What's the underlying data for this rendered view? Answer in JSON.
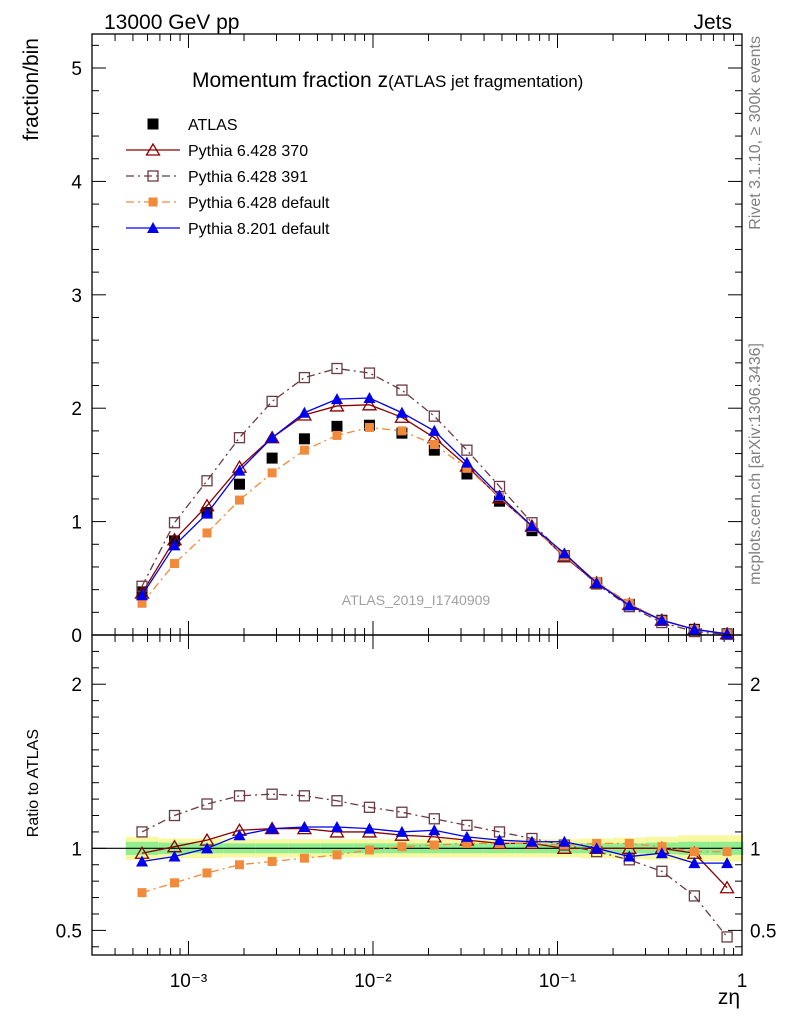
{
  "header": {
    "left": "13000 GeV pp",
    "right": "Jets"
  },
  "side_text": {
    "rivet": "Rivet 3.1.10, ≥ 300k events",
    "mcplots": "mcplots.cern.ch [arXiv:1306.3436]"
  },
  "chart_data": [
    {
      "type": "scatter",
      "title": "Momentum fraction z",
      "title_suffix": "(ATLAS jet fragmentation)",
      "ylabel": "fraction/bin",
      "xlabel": "zη",
      "xscale": "log",
      "xlim": [
        0.0003,
        1
      ],
      "ylim": [
        0,
        5.3
      ],
      "y_ticks": [
        "0",
        "1",
        "2",
        "3",
        "4",
        "5"
      ],
      "x_ticks": [
        "10⁻³",
        "10⁻²",
        "10⁻¹",
        "1"
      ],
      "legend_position": "top-left",
      "watermark": "ATLAS_2019_I1740909",
      "x": [
        0.00056,
        0.00084,
        0.00126,
        0.00189,
        0.00284,
        0.00425,
        0.00638,
        0.00957,
        0.01435,
        0.0215,
        0.0323,
        0.0485,
        0.0727,
        0.109,
        0.163,
        0.245,
        0.368,
        0.552,
        0.83
      ],
      "series": [
        {
          "name": "ATLAS",
          "color": "#000000",
          "marker": "filled-square",
          "line": "none",
          "values": [
            0.38,
            0.83,
            1.08,
            1.33,
            1.56,
            1.73,
            1.84,
            1.85,
            1.78,
            1.63,
            1.42,
            1.18,
            0.92,
            0.69,
            0.46,
            0.27,
            0.13,
            0.05,
            0.01
          ]
        },
        {
          "name": "Pythia 6.428 370",
          "color": "#8b0000",
          "marker": "open-triangle",
          "line": "solid",
          "values": [
            0.37,
            0.84,
            1.14,
            1.48,
            1.74,
            1.94,
            2.02,
            2.03,
            1.92,
            1.74,
            1.49,
            1.21,
            0.96,
            0.69,
            0.46,
            0.27,
            0.13,
            0.05,
            0.01
          ]
        },
        {
          "name": "Pythia 6.428 391",
          "color": "#6b3a45",
          "marker": "open-square",
          "line": "dash-dot",
          "values": [
            0.43,
            0.99,
            1.36,
            1.74,
            2.06,
            2.27,
            2.35,
            2.31,
            2.16,
            1.93,
            1.63,
            1.31,
            0.99,
            0.7,
            0.45,
            0.25,
            0.11,
            0.03,
            0.005
          ]
        },
        {
          "name": "Pythia 6.428 default",
          "color": "#f28a3c",
          "marker": "filled-square-small",
          "line": "dash-dot",
          "values": [
            0.28,
            0.63,
            0.9,
            1.19,
            1.43,
            1.63,
            1.76,
            1.83,
            1.8,
            1.68,
            1.47,
            1.22,
            0.95,
            0.7,
            0.47,
            0.28,
            0.13,
            0.05,
            0.01
          ]
        },
        {
          "name": "Pythia 8.201 default",
          "color": "#0000ee",
          "marker": "filled-triangle",
          "line": "solid",
          "values": [
            0.35,
            0.79,
            1.07,
            1.45,
            1.74,
            1.96,
            2.08,
            2.09,
            1.96,
            1.8,
            1.52,
            1.23,
            0.96,
            0.72,
            0.46,
            0.26,
            0.13,
            0.05,
            0.01
          ]
        }
      ]
    },
    {
      "type": "scatter",
      "ylabel": "Ratio to ATLAS",
      "xlabel": "zη",
      "xscale": "log",
      "xlim": [
        0.0003,
        1
      ],
      "ylim": [
        0.35,
        2.3
      ],
      "y_ticks": [
        "0.5",
        "1",
        "2"
      ],
      "x": [
        0.00056,
        0.00084,
        0.00126,
        0.00189,
        0.00284,
        0.00425,
        0.00638,
        0.00957,
        0.01435,
        0.0215,
        0.0323,
        0.0485,
        0.0727,
        0.109,
        0.163,
        0.245,
        0.368,
        0.552,
        0.83
      ],
      "band_inner": [
        0.04,
        0.035,
        0.03,
        0.03,
        0.03,
        0.03,
        0.03,
        0.03,
        0.03,
        0.03,
        0.03,
        0.03,
        0.03,
        0.03,
        0.03,
        0.03,
        0.035,
        0.04,
        0.04
      ],
      "band_outer": [
        0.07,
        0.06,
        0.06,
        0.055,
        0.055,
        0.055,
        0.055,
        0.055,
        0.055,
        0.055,
        0.055,
        0.055,
        0.055,
        0.055,
        0.06,
        0.065,
        0.07,
        0.08,
        0.08
      ],
      "series": [
        {
          "name": "Pythia 6.428 370",
          "color": "#8b0000",
          "marker": "open-triangle",
          "line": "solid",
          "values": [
            0.97,
            1.01,
            1.05,
            1.11,
            1.12,
            1.12,
            1.1,
            1.1,
            1.08,
            1.07,
            1.05,
            1.03,
            1.03,
            1.0,
            1.0,
            1.0,
            1.0,
            0.97,
            0.76
          ]
        },
        {
          "name": "Pythia 6.428 391",
          "color": "#6b3a45",
          "marker": "open-square",
          "line": "dash-dot",
          "values": [
            1.1,
            1.2,
            1.27,
            1.32,
            1.33,
            1.32,
            1.29,
            1.25,
            1.22,
            1.18,
            1.14,
            1.1,
            1.06,
            1.02,
            0.98,
            0.93,
            0.86,
            0.71,
            0.46
          ]
        },
        {
          "name": "Pythia 6.428 default",
          "color": "#f28a3c",
          "marker": "filled-square-small",
          "line": "dash-dot",
          "values": [
            0.73,
            0.79,
            0.85,
            0.9,
            0.92,
            0.94,
            0.96,
            0.99,
            1.01,
            1.02,
            1.03,
            1.03,
            1.03,
            1.02,
            1.03,
            1.03,
            1.01,
            0.98,
            0.98
          ]
        },
        {
          "name": "Pythia 8.201 default",
          "color": "#0000ee",
          "marker": "filled-triangle",
          "line": "solid",
          "values": [
            0.92,
            0.95,
            1.0,
            1.08,
            1.12,
            1.13,
            1.13,
            1.12,
            1.1,
            1.11,
            1.07,
            1.05,
            1.04,
            1.04,
            1.0,
            0.95,
            0.97,
            0.91,
            0.91
          ]
        }
      ]
    }
  ]
}
